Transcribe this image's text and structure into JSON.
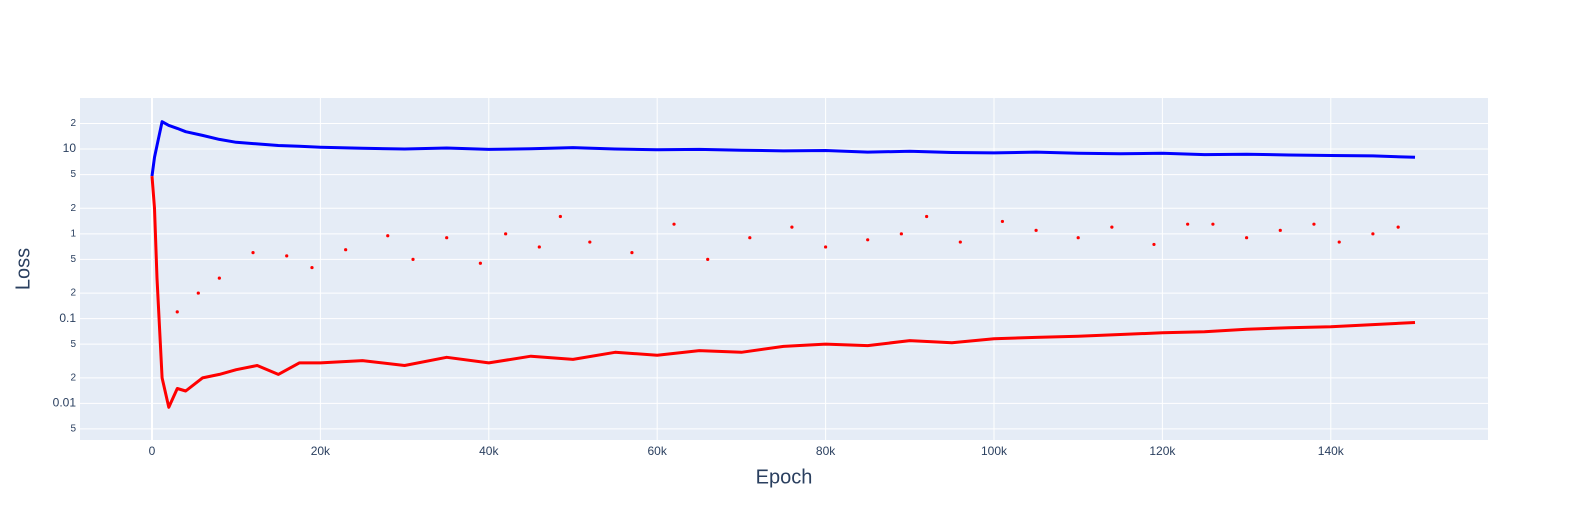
{
  "chart_data": {
    "type": "line",
    "x_label": "Epoch",
    "y_label": "Loss",
    "log_y": true,
    "grid": true,
    "xlim": [
      -8550,
      158670
    ],
    "xticks": [
      0,
      {
        "value": 20000,
        "label": "20k"
      },
      {
        "value": 40000,
        "label": "40k"
      },
      {
        "value": 60000,
        "label": "60k"
      },
      {
        "value": 80000,
        "label": "80k"
      },
      {
        "value": 100000,
        "label": "100k"
      },
      {
        "value": 120000,
        "label": "120k"
      },
      {
        "value": 140000,
        "label": "140k"
      }
    ],
    "ylim": [
      0.0037,
      40
    ],
    "yticks": [
      {
        "value": 20,
        "label": "2"
      },
      10,
      5,
      2,
      1,
      {
        "value": 0.5,
        "label": "5"
      },
      {
        "value": 0.2,
        "label": "2"
      },
      0.1,
      {
        "value": 0.05,
        "label": "5"
      },
      {
        "value": 0.02,
        "label": "2"
      },
      0.01,
      {
        "value": 0.005,
        "label": "5"
      }
    ],
    "series": [
      {
        "color": "#0000ff",
        "mode": "lines",
        "x": [
          0,
          300,
          600,
          1200,
          2000,
          3000,
          4000,
          6000,
          8000,
          10000,
          12500,
          15000,
          17500,
          20000,
          25000,
          30000,
          35000,
          40000,
          45000,
          50000,
          55000,
          60000,
          65000,
          70000,
          75000,
          80000,
          85000,
          90000,
          95000,
          100000,
          105000,
          110000,
          115000,
          120000,
          125000,
          130000,
          135000,
          140000,
          145000,
          150000
        ],
        "values": [
          4.8,
          8,
          11,
          21,
          19,
          17.5,
          16,
          14.5,
          13,
          12,
          11.5,
          11,
          10.8,
          10.5,
          10.2,
          10.0,
          10.3,
          9.9,
          10.1,
          10.4,
          10.0,
          9.8,
          9.9,
          9.7,
          9.5,
          9.6,
          9.2,
          9.4,
          9.1,
          9.0,
          9.2,
          8.9,
          8.8,
          8.9,
          8.6,
          8.7,
          8.5,
          8.4,
          8.3,
          8.0
        ]
      },
      {
        "color": "#ff0000",
        "mode": "lines",
        "x": [
          0,
          300,
          600,
          1200,
          2000,
          3000,
          4000,
          6000,
          8000,
          10000,
          12500,
          15000,
          17500,
          20000,
          25000,
          30000,
          35000,
          40000,
          45000,
          50000,
          55000,
          60000,
          65000,
          70000,
          75000,
          80000,
          85000,
          90000,
          95000,
          100000,
          105000,
          110000,
          115000,
          120000,
          125000,
          130000,
          135000,
          140000,
          145000,
          150000
        ],
        "values": [
          4.8,
          2,
          0.3,
          0.02,
          0.009,
          0.015,
          0.014,
          0.02,
          0.022,
          0.025,
          0.028,
          0.022,
          0.03,
          0.03,
          0.032,
          0.028,
          0.035,
          0.03,
          0.036,
          0.033,
          0.04,
          0.037,
          0.042,
          0.04,
          0.047,
          0.05,
          0.048,
          0.055,
          0.052,
          0.058,
          0.06,
          0.062,
          0.065,
          0.068,
          0.07,
          0.075,
          0.078,
          0.08,
          0.085,
          0.09
        ]
      },
      {
        "color": "#ff0000",
        "mode": "markers",
        "x": [
          3000,
          5500,
          8000,
          12000,
          16000,
          19000,
          23000,
          28000,
          31000,
          35000,
          39000,
          42000,
          46000,
          48500,
          52000,
          57000,
          62000,
          66000,
          71000,
          76000,
          80000,
          85000,
          89000,
          92000,
          96000,
          101000,
          105000,
          110000,
          114000,
          119000,
          123000,
          126000,
          130000,
          134000,
          138000,
          141000,
          145000,
          148000
        ],
        "values": [
          0.12,
          0.2,
          0.3,
          0.6,
          0.55,
          0.4,
          0.65,
          0.95,
          0.5,
          0.9,
          0.45,
          1.0,
          0.7,
          1.6,
          0.8,
          0.6,
          1.3,
          0.5,
          0.9,
          1.2,
          0.7,
          0.85,
          1.0,
          1.6,
          0.8,
          1.4,
          1.1,
          0.9,
          1.2,
          0.75,
          1.3,
          1.3,
          0.9,
          1.1,
          1.3,
          0.8,
          1.0,
          1.2
        ]
      }
    ]
  }
}
